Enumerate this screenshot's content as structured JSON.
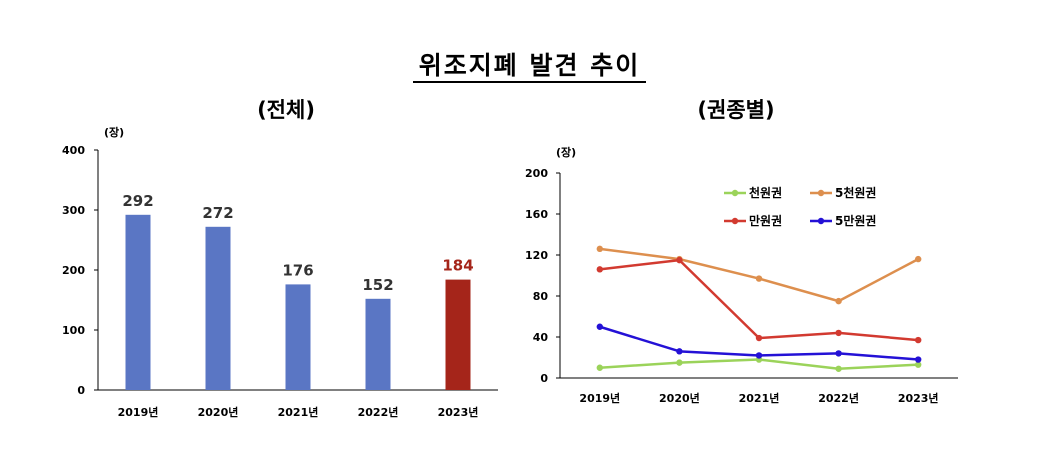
{
  "main_title": "위조지폐 발견 추이",
  "chart_data": [
    {
      "type": "bar",
      "title": "(전체)",
      "unit": "(장)",
      "categories": [
        "2019년",
        "2020년",
        "2021년",
        "2022년",
        "2023년"
      ],
      "values": [
        292,
        272,
        176,
        152,
        184
      ],
      "ylim": [
        0,
        400
      ],
      "yticks": [
        0,
        100,
        200,
        300,
        400
      ],
      "colors": [
        "#5A76C4",
        "#5A76C4",
        "#5A76C4",
        "#5A76C4",
        "#A5251A"
      ],
      "label_colors": [
        "#333333",
        "#333333",
        "#333333",
        "#333333",
        "#A5251A"
      ],
      "grid": false
    },
    {
      "type": "line",
      "title": "(권종별)",
      "unit": "(장)",
      "categories": [
        "2019년",
        "2020년",
        "2021년",
        "2022년",
        "2023년"
      ],
      "ylim": [
        0,
        200
      ],
      "yticks": [
        0,
        40,
        80,
        120,
        160,
        200
      ],
      "legend_position": "top-right",
      "grid": false,
      "series": [
        {
          "name": "천원권",
          "color": "#9BD35A",
          "values": [
            10,
            15,
            18,
            9,
            13
          ]
        },
        {
          "name": "5천원권",
          "color": "#DD8F4E",
          "values": [
            126,
            116,
            97,
            75,
            116
          ]
        },
        {
          "name": "만원권",
          "color": "#D23A30",
          "values": [
            106,
            115,
            39,
            44,
            37
          ]
        },
        {
          "name": "5만원권",
          "color": "#2411D6",
          "values": [
            50,
            26,
            22,
            24,
            18
          ]
        }
      ]
    }
  ]
}
